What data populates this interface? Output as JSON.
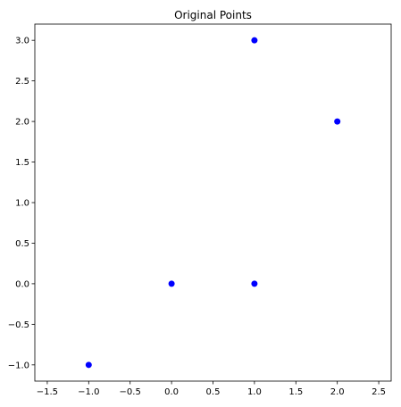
{
  "chart_data": {
    "type": "scatter",
    "title": "Original Points",
    "xlabel": "",
    "ylabel": "",
    "xlim": [
      -1.65,
      2.65
    ],
    "ylim": [
      -1.2,
      3.2
    ],
    "xticks": [
      -1.5,
      -1.0,
      -0.5,
      0.0,
      0.5,
      1.0,
      1.5,
      2.0,
      2.5
    ],
    "xtick_labels": [
      "−1.5",
      "−1.0",
      "−0.5",
      "0.0",
      "0.5",
      "1.0",
      "1.5",
      "2.0",
      "2.5"
    ],
    "yticks": [
      -1.0,
      -0.5,
      0.0,
      0.5,
      1.0,
      1.5,
      2.0,
      2.5,
      3.0
    ],
    "ytick_labels": [
      "−1.0",
      "−0.5",
      "0.0",
      "0.5",
      "1.0",
      "1.5",
      "2.0",
      "2.5",
      "3.0"
    ],
    "grid": false,
    "series": [
      {
        "color": "#0000ff",
        "points": [
          {
            "x": -1,
            "y": -1
          },
          {
            "x": 0,
            "y": 0
          },
          {
            "x": 1,
            "y": 0
          },
          {
            "x": 1,
            "y": 3
          },
          {
            "x": 2,
            "y": 2
          }
        ]
      }
    ]
  }
}
